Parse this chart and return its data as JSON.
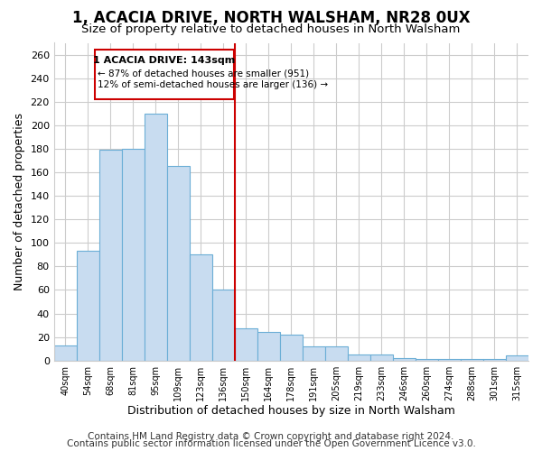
{
  "title": "1, ACACIA DRIVE, NORTH WALSHAM, NR28 0UX",
  "subtitle": "Size of property relative to detached houses in North Walsham",
  "xlabel": "Distribution of detached houses by size in North Walsham",
  "ylabel": "Number of detached properties",
  "bar_labels": [
    "40sqm",
    "54sqm",
    "68sqm",
    "81sqm",
    "95sqm",
    "109sqm",
    "123sqm",
    "136sqm",
    "150sqm",
    "164sqm",
    "178sqm",
    "191sqm",
    "205sqm",
    "219sqm",
    "233sqm",
    "246sqm",
    "260sqm",
    "274sqm",
    "288sqm",
    "301sqm",
    "315sqm"
  ],
  "bar_heights": [
    13,
    93,
    179,
    180,
    210,
    165,
    90,
    60,
    27,
    24,
    22,
    12,
    12,
    5,
    5,
    2,
    1,
    1,
    1,
    1,
    4
  ],
  "bar_color": "#c8dcf0",
  "bar_edge_color": "#6baed6",
  "ylim": [
    0,
    270
  ],
  "yticks": [
    0,
    20,
    40,
    60,
    80,
    100,
    120,
    140,
    160,
    180,
    200,
    220,
    240,
    260
  ],
  "vline_x": 7.5,
  "vline_color": "#cc0000",
  "annotation_title": "1 ACACIA DRIVE: 143sqm",
  "annotation_line1": "← 87% of detached houses are smaller (951)",
  "annotation_line2": "12% of semi-detached houses are larger (136) →",
  "annotation_box_color": "#ffffff",
  "annotation_box_edge": "#cc0000",
  "footer1": "Contains HM Land Registry data © Crown copyright and database right 2024.",
  "footer2": "Contains public sector information licensed under the Open Government Licence v3.0.",
  "bg_color": "#ffffff",
  "plot_bg_color": "#ffffff",
  "grid_color": "#cccccc",
  "title_fontsize": 12,
  "subtitle_fontsize": 9.5,
  "axis_label_fontsize": 9,
  "tick_fontsize": 8,
  "footer_fontsize": 7.5
}
